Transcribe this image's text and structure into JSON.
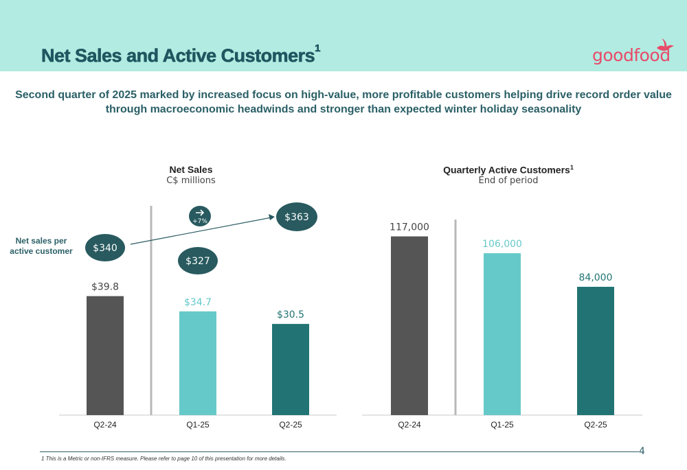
{
  "header": {
    "title": "Net Sales and Active Customers",
    "title_sup": "1",
    "logo_text": "goodfood"
  },
  "subtitle_line1": "Second quarter of 2025 marked by increased focus on high-value, more profitable customers helping drive record order value",
  "subtitle_line2": "through macroeconomic headwinds and stronger than expected winter holiday seasonality",
  "side_label_line1": "Net sales per",
  "side_label_line2": "active customer",
  "per_customer": {
    "values": [
      "$340",
      "$327",
      "$363"
    ],
    "growth_label": "+7%",
    "arrow_icon": "arrow-right"
  },
  "colors": {
    "dark_gray": "#555555",
    "light_teal": "#66c9c9",
    "dark_teal": "#227474",
    "bubble": "#285a5f",
    "header_bg": "#b2ebe1",
    "logo": "#e84a6a"
  },
  "chart_data": [
    {
      "type": "bar",
      "title": "Net Sales",
      "subtitle": "C$ millions",
      "categories": [
        "Q2-24",
        "Q1-25",
        "Q2-25"
      ],
      "values": [
        39.8,
        34.7,
        30.5
      ],
      "data_labels": [
        "$39.8",
        "$34.7",
        "$30.5"
      ],
      "ylim": [
        0,
        70
      ]
    },
    {
      "type": "bar",
      "title": "Quarterly Active Customers",
      "title_sup": "1",
      "subtitle": "End of period",
      "categories": [
        "Q2-24",
        "Q1-25",
        "Q2-25"
      ],
      "values": [
        117000,
        106000,
        84000
      ],
      "data_labels": [
        "117,000",
        "106,000",
        "84,000"
      ],
      "ylim": [
        0,
        137000
      ]
    }
  ],
  "footnote": "1   This is a Metric or non-IFRS measure. Please refer to page 10 of this presentation for more details.",
  "page_number": "4"
}
